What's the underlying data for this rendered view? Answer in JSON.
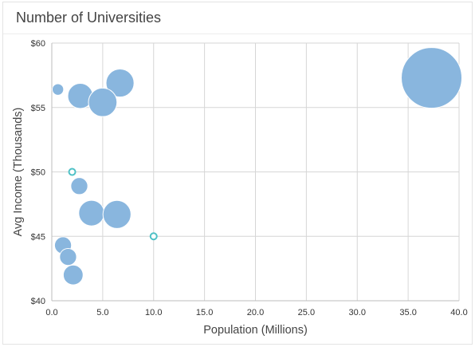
{
  "title": "Number of Universities",
  "chart_data": {
    "type": "scatter",
    "subtype": "bubble",
    "xlabel": "Population (Millions)",
    "ylabel": "Avg Income (Thousands)",
    "xlim": [
      0,
      40
    ],
    "ylim": [
      40,
      60
    ],
    "x_ticks": [
      "0.0",
      "5.0",
      "10.0",
      "15.0",
      "20.0",
      "25.0",
      "30.0",
      "35.0",
      "40.0"
    ],
    "y_ticks": [
      "$40",
      "$45",
      "$50",
      "$55",
      "$60"
    ],
    "grid": true,
    "legend": "none",
    "colors": {
      "bubble": "#89b6de",
      "hollow": "#4fc1c6",
      "grid": "#d6d6d6"
    },
    "points": [
      {
        "x": 37.3,
        "y": 57.3,
        "size": 280,
        "style": "filled"
      },
      {
        "x": 6.7,
        "y": 56.9,
        "size": 60,
        "style": "filled"
      },
      {
        "x": 2.8,
        "y": 55.9,
        "size": 48,
        "style": "filled"
      },
      {
        "x": 5.0,
        "y": 55.4,
        "size": 62,
        "style": "filled"
      },
      {
        "x": 0.6,
        "y": 56.4,
        "size": 10,
        "style": "filled"
      },
      {
        "x": 2.0,
        "y": 50.0,
        "size": 2,
        "style": "hollow"
      },
      {
        "x": 2.7,
        "y": 48.9,
        "size": 22,
        "style": "filled"
      },
      {
        "x": 3.9,
        "y": 46.8,
        "size": 50,
        "style": "filled"
      },
      {
        "x": 6.4,
        "y": 46.7,
        "size": 60,
        "style": "filled"
      },
      {
        "x": 10.0,
        "y": 45.0,
        "size": 2,
        "style": "hollow"
      },
      {
        "x": 1.1,
        "y": 44.3,
        "size": 22,
        "style": "filled"
      },
      {
        "x": 1.6,
        "y": 43.4,
        "size": 22,
        "style": "filled"
      },
      {
        "x": 2.1,
        "y": 42.0,
        "size": 30,
        "style": "filled"
      }
    ]
  }
}
